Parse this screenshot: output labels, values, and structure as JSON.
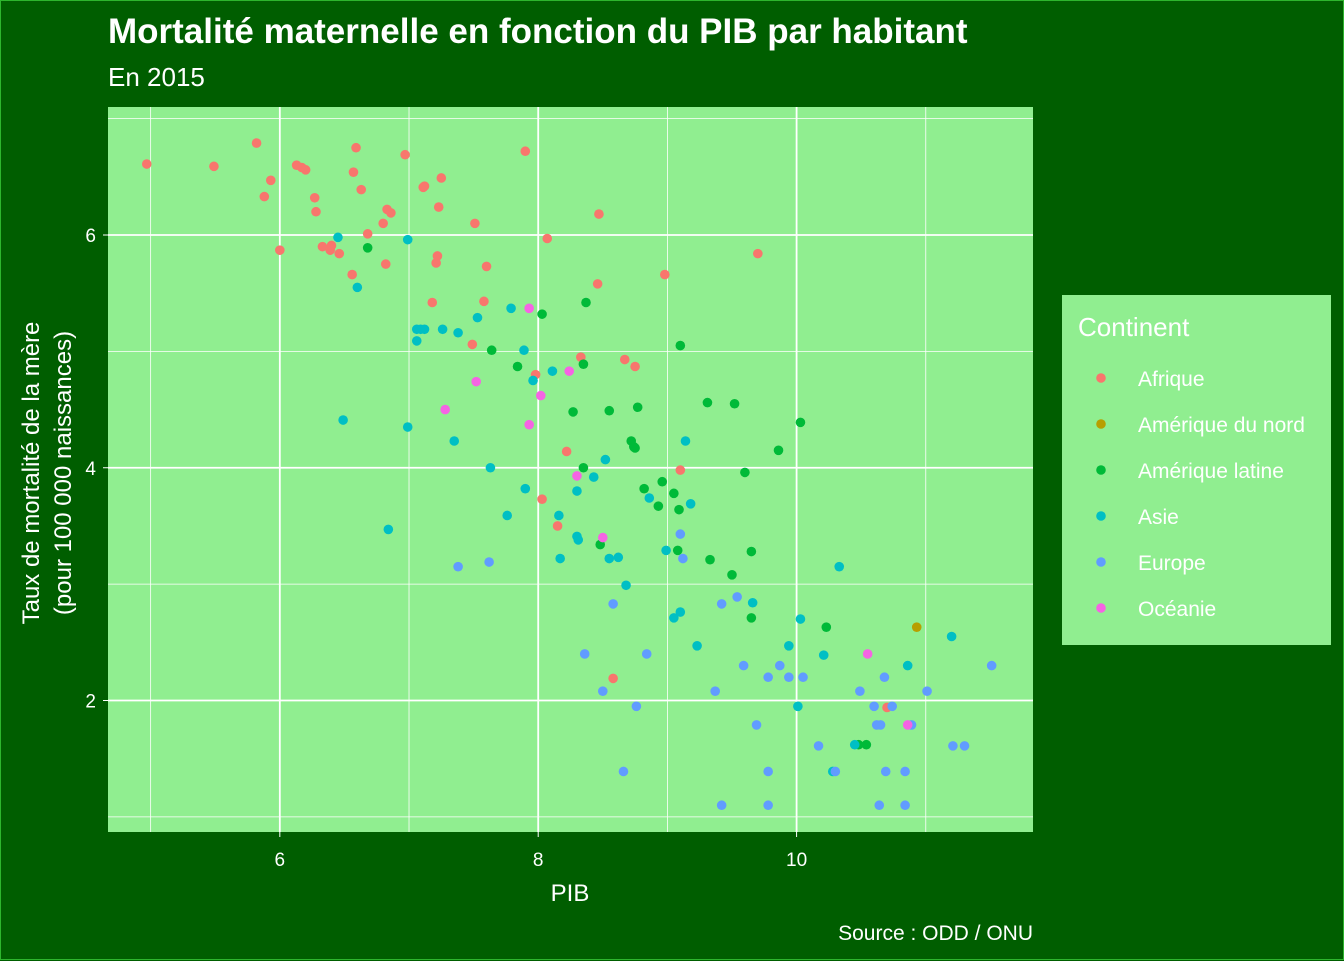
{
  "chart_data": {
    "type": "scatter",
    "title": "Mortalité maternelle en fonction du PIB par habitant",
    "subtitle": "En 2015",
    "xlabel": "PIB",
    "ylabel_line1": "Taux de mortalité de la mère",
    "ylabel_line2": "(pour 100 000 naissances)",
    "caption": "Source : ODD / ONU",
    "xlim": [
      4.67,
      11.83
    ],
    "ylim": [
      0.87,
      7.1
    ],
    "xticks": [
      6,
      8,
      10
    ],
    "yticks": [
      2,
      4,
      6
    ],
    "grid": true,
    "legend": {
      "title": "Continent",
      "placement": "right",
      "entries": [
        "Afrique",
        "Amérique du nord",
        "Amérique latine",
        "Asie",
        "Europe",
        "Océanie"
      ]
    },
    "colors": {
      "Afrique": "#f8766d",
      "Amérique du nord": "#b79f00",
      "Amérique latine": "#00ba38",
      "Asie": "#00bfc4",
      "Europe": "#619cff",
      "Océanie": "#f564e3"
    },
    "series": [
      {
        "name": "Afrique",
        "points": [
          [
            4.97,
            6.61
          ],
          [
            5.49,
            6.59
          ],
          [
            5.82,
            6.79
          ],
          [
            5.93,
            6.47
          ],
          [
            5.88,
            6.33
          ],
          [
            6.0,
            5.87
          ],
          [
            6.13,
            6.6
          ],
          [
            6.17,
            6.58
          ],
          [
            6.2,
            6.56
          ],
          [
            6.27,
            6.32
          ],
          [
            6.28,
            6.2
          ],
          [
            6.33,
            5.9
          ],
          [
            6.39,
            5.87
          ],
          [
            6.4,
            5.91
          ],
          [
            6.46,
            5.84
          ],
          [
            6.56,
            5.66
          ],
          [
            6.57,
            6.54
          ],
          [
            6.59,
            6.75
          ],
          [
            6.63,
            6.39
          ],
          [
            6.68,
            6.01
          ],
          [
            6.8,
            6.1
          ],
          [
            6.82,
            5.75
          ],
          [
            6.83,
            6.22
          ],
          [
            6.86,
            6.19
          ],
          [
            6.97,
            6.69
          ],
          [
            7.11,
            6.41
          ],
          [
            7.12,
            6.42
          ],
          [
            7.18,
            5.42
          ],
          [
            7.21,
            5.76
          ],
          [
            7.22,
            5.82
          ],
          [
            7.23,
            6.24
          ],
          [
            7.25,
            6.49
          ],
          [
            7.49,
            5.06
          ],
          [
            7.51,
            6.1
          ],
          [
            7.58,
            5.43
          ],
          [
            7.6,
            5.73
          ],
          [
            7.9,
            6.72
          ],
          [
            7.98,
            4.8
          ],
          [
            8.03,
            3.73
          ],
          [
            8.07,
            5.97
          ],
          [
            8.15,
            3.5
          ],
          [
            8.22,
            4.14
          ],
          [
            8.33,
            4.95
          ],
          [
            8.46,
            5.58
          ],
          [
            8.47,
            6.18
          ],
          [
            8.58,
            2.19
          ],
          [
            8.67,
            4.93
          ],
          [
            8.75,
            4.87
          ],
          [
            8.98,
            5.66
          ],
          [
            9.1,
            3.98
          ],
          [
            9.7,
            5.84
          ],
          [
            10.7,
            1.94
          ]
        ]
      },
      {
        "name": "Amérique du nord",
        "points": [
          [
            10.93,
            2.63
          ]
        ]
      },
      {
        "name": "Amérique latine",
        "points": [
          [
            6.68,
            5.89
          ],
          [
            7.64,
            5.01
          ],
          [
            7.84,
            4.87
          ],
          [
            8.03,
            5.32
          ],
          [
            8.27,
            4.48
          ],
          [
            8.35,
            4.89
          ],
          [
            8.35,
            4.0
          ],
          [
            8.37,
            5.42
          ],
          [
            8.48,
            3.34
          ],
          [
            8.55,
            4.49
          ],
          [
            8.72,
            4.23
          ],
          [
            8.74,
            4.18
          ],
          [
            8.75,
            4.17
          ],
          [
            8.77,
            4.52
          ],
          [
            8.82,
            3.82
          ],
          [
            8.93,
            3.67
          ],
          [
            8.96,
            3.88
          ],
          [
            9.05,
            3.78
          ],
          [
            9.08,
            3.29
          ],
          [
            9.09,
            3.64
          ],
          [
            9.1,
            5.05
          ],
          [
            9.31,
            4.56
          ],
          [
            9.33,
            3.21
          ],
          [
            9.52,
            4.55
          ],
          [
            9.5,
            3.08
          ],
          [
            9.6,
            3.96
          ],
          [
            9.65,
            3.28
          ],
          [
            9.65,
            2.71
          ],
          [
            9.86,
            4.15
          ],
          [
            10.03,
            4.39
          ],
          [
            10.23,
            2.63
          ],
          [
            10.48,
            1.62
          ],
          [
            10.54,
            1.62
          ]
        ]
      },
      {
        "name": "Asie",
        "points": [
          [
            6.45,
            5.98
          ],
          [
            6.49,
            4.41
          ],
          [
            6.6,
            5.55
          ],
          [
            6.84,
            3.47
          ],
          [
            6.99,
            5.96
          ],
          [
            6.99,
            4.35
          ],
          [
            7.06,
            5.09
          ],
          [
            7.06,
            5.19
          ],
          [
            7.09,
            5.19
          ],
          [
            7.12,
            5.19
          ],
          [
            7.26,
            5.19
          ],
          [
            7.35,
            4.23
          ],
          [
            7.38,
            5.16
          ],
          [
            7.53,
            5.29
          ],
          [
            7.63,
            4.0
          ],
          [
            7.76,
            3.59
          ],
          [
            7.79,
            5.37
          ],
          [
            7.89,
            5.01
          ],
          [
            7.9,
            3.82
          ],
          [
            7.96,
            4.75
          ],
          [
            8.11,
            4.83
          ],
          [
            8.16,
            3.59
          ],
          [
            8.17,
            3.22
          ],
          [
            8.3,
            3.41
          ],
          [
            8.3,
            3.8
          ],
          [
            8.31,
            3.38
          ],
          [
            8.43,
            3.92
          ],
          [
            8.52,
            4.07
          ],
          [
            8.55,
            3.22
          ],
          [
            8.62,
            3.23
          ],
          [
            8.68,
            2.99
          ],
          [
            8.86,
            3.74
          ],
          [
            8.99,
            3.29
          ],
          [
            9.05,
            2.71
          ],
          [
            9.1,
            2.76
          ],
          [
            9.14,
            4.23
          ],
          [
            9.18,
            3.69
          ],
          [
            9.23,
            2.47
          ],
          [
            9.66,
            2.84
          ],
          [
            9.94,
            2.47
          ],
          [
            10.01,
            1.95
          ],
          [
            10.03,
            2.7
          ],
          [
            10.21,
            2.39
          ],
          [
            10.28,
            1.39
          ],
          [
            10.33,
            3.15
          ],
          [
            10.45,
            1.62
          ],
          [
            10.86,
            2.3
          ],
          [
            11.2,
            2.55
          ]
        ]
      },
      {
        "name": "Europe",
        "points": [
          [
            7.38,
            3.15
          ],
          [
            7.62,
            3.19
          ],
          [
            8.36,
            2.4
          ],
          [
            8.5,
            2.08
          ],
          [
            8.58,
            2.83
          ],
          [
            8.66,
            1.39
          ],
          [
            8.76,
            1.95
          ],
          [
            8.84,
            2.4
          ],
          [
            9.1,
            3.43
          ],
          [
            9.12,
            3.22
          ],
          [
            9.37,
            2.08
          ],
          [
            9.42,
            2.83
          ],
          [
            9.42,
            1.1
          ],
          [
            9.54,
            2.89
          ],
          [
            9.59,
            2.3
          ],
          [
            9.69,
            1.79
          ],
          [
            9.78,
            2.2
          ],
          [
            9.78,
            1.39
          ],
          [
            9.78,
            1.1
          ],
          [
            9.87,
            2.3
          ],
          [
            9.94,
            2.2
          ],
          [
            10.05,
            2.2
          ],
          [
            10.17,
            1.61
          ],
          [
            10.3,
            1.39
          ],
          [
            10.49,
            2.08
          ],
          [
            10.6,
            1.95
          ],
          [
            10.62,
            1.79
          ],
          [
            10.64,
            1.1
          ],
          [
            10.65,
            1.79
          ],
          [
            10.68,
            2.2
          ],
          [
            10.69,
            1.39
          ],
          [
            10.74,
            1.95
          ],
          [
            10.84,
            1.39
          ],
          [
            10.84,
            1.1
          ],
          [
            10.89,
            1.79
          ],
          [
            11.01,
            2.08
          ],
          [
            11.21,
            1.61
          ],
          [
            11.3,
            1.61
          ],
          [
            11.51,
            2.3
          ]
        ]
      },
      {
        "name": "Océanie",
        "points": [
          [
            7.28,
            4.5
          ],
          [
            7.52,
            4.74
          ],
          [
            7.93,
            4.37
          ],
          [
            7.93,
            5.37
          ],
          [
            8.02,
            4.62
          ],
          [
            8.24,
            4.83
          ],
          [
            8.3,
            3.93
          ],
          [
            8.5,
            3.4
          ],
          [
            10.55,
            2.4
          ],
          [
            10.86,
            1.79
          ]
        ]
      }
    ]
  }
}
